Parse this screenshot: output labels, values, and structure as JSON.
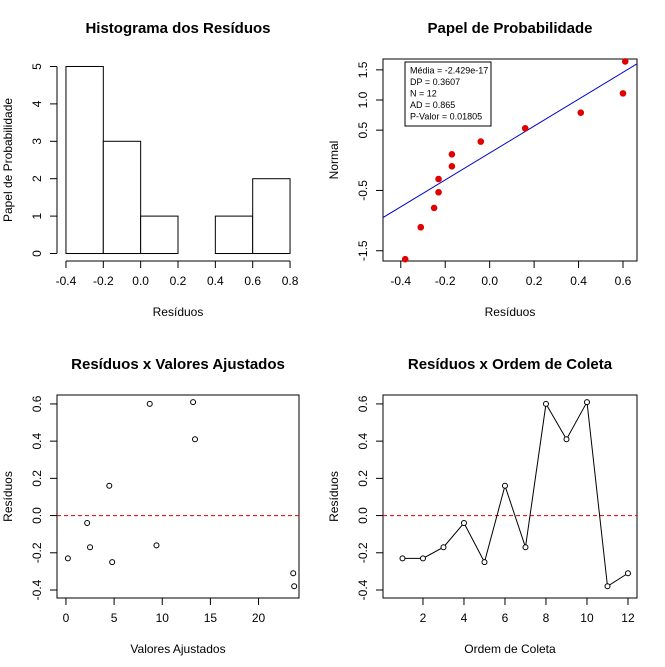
{
  "chart_data": [
    {
      "type": "histogram",
      "title": "Histograma dos Resíduos",
      "x_label": "Resíduos",
      "y_label": "Papel de Probabilidade",
      "bins": [
        -0.4,
        -0.2,
        0,
        0.2,
        0.4,
        0.6,
        0.8
      ],
      "counts": [
        5,
        3,
        1,
        0,
        1,
        2
      ],
      "color": "#ffffff",
      "xlim": [
        -0.448,
        0.848
      ],
      "ylim": [
        -0.2,
        5.2
      ],
      "xticks": [
        -0.4,
        -0.2,
        {
          "value": 0,
          "label": "0.0"
        },
        0.2,
        0.4,
        0.6,
        0.8
      ],
      "yticks": [
        0,
        1,
        2,
        3,
        4,
        5
      ]
    },
    {
      "type": "scatter",
      "title": "Papel de Probabilidade",
      "x_label": "Resíduos",
      "y_label": "Normal",
      "x": [
        -0.38,
        -0.31,
        -0.25,
        -0.23,
        -0.23,
        -0.17,
        -0.17,
        -0.04,
        0.16,
        0.41,
        0.6,
        0.61
      ],
      "y": [
        -1.64,
        -1.11,
        -0.79,
        -0.53,
        -0.31,
        -0.1,
        0.1,
        0.31,
        0.53,
        0.79,
        1.11,
        1.64
      ],
      "color": "#e00000",
      "marker": "filled",
      "fit_line": {
        "x": [
          -0.48,
          0.663
        ],
        "y": [
          -0.95,
          1.6
        ],
        "color": "#0000cc"
      },
      "annotations": [
        "Média = -2.429e-17",
        "DP = 0.3607",
        "N = 12",
        "AD = 0.865",
        "P-Valor = 0.01805"
      ],
      "xlim": [
        -0.48,
        0.663
      ],
      "ylim": [
        -1.67,
        1.68
      ],
      "xticks": [
        -0.4,
        -0.2,
        {
          "value": 0,
          "label": "0.0"
        },
        0.2,
        0.4,
        0.6
      ],
      "yticks": [
        -1.5,
        -0.5,
        0.5,
        {
          "value": 1,
          "label": "1.0"
        },
        1.5
      ]
    },
    {
      "type": "scatter",
      "title": "Resíduos x Valores Ajustados",
      "x_label": "Valores Ajustados",
      "y_label": "Resíduos",
      "x": [
        0.2,
        2.2,
        2.5,
        4.5,
        4.8,
        8.7,
        9.4,
        13.2,
        13.4,
        23.6,
        23.7
      ],
      "y": [
        -0.23,
        -0.04,
        -0.17,
        0.16,
        -0.25,
        0.6,
        -0.16,
        0.61,
        0.41,
        -0.31,
        -0.38
      ],
      "color": "#000000",
      "marker": "open",
      "hline": 0,
      "hline_color": "#e00000",
      "xlim": [
        -0.93,
        24.2
      ],
      "ylim": [
        -0.443,
        0.648
      ],
      "xticks": [
        0,
        5,
        10,
        15,
        20
      ],
      "yticks": [
        -0.4,
        -0.2,
        {
          "value": 0,
          "label": "0.0"
        },
        0.2,
        0.4,
        0.6
      ]
    },
    {
      "type": "line",
      "title": "Resíduos x Ordem de Coleta",
      "x_label": "Ordem de Coleta",
      "y_label": "Resíduos",
      "x": [
        1,
        2,
        3,
        4,
        5,
        6,
        7,
        8,
        9,
        10,
        11,
        12
      ],
      "y": [
        -0.23,
        -0.23,
        -0.17,
        -0.04,
        -0.25,
        0.16,
        -0.17,
        0.6,
        0.41,
        0.61,
        -0.38,
        -0.31
      ],
      "color": "#000000",
      "marker": "open",
      "hline": 0,
      "hline_color": "#e00000",
      "xlim": [
        0.05,
        12.44
      ],
      "ylim": [
        -0.443,
        0.648
      ],
      "xticks": [
        2,
        4,
        6,
        8,
        10,
        12
      ],
      "yticks": [
        -0.4,
        -0.2,
        {
          "value": 0,
          "label": "0.0"
        },
        0.2,
        0.4,
        0.6
      ]
    }
  ]
}
